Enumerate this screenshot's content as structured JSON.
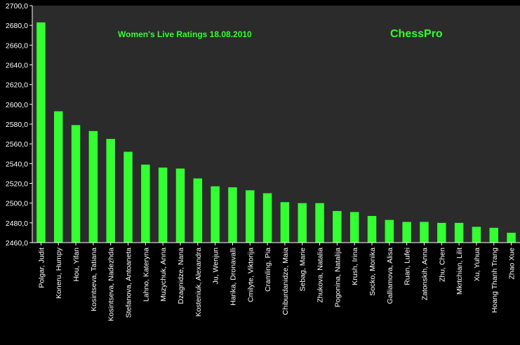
{
  "chart_data": {
    "type": "bar",
    "title": "Women's Live Ratings 18.08.2010",
    "watermark": "ChessPro",
    "xlabel": "",
    "ylabel": "",
    "ylim": [
      2460,
      2700
    ],
    "ytick_step": 20,
    "yticks": [
      "2460,0",
      "2480,0",
      "2500,0",
      "2520,0",
      "2540,0",
      "2560,0",
      "2580,0",
      "2600,0",
      "2620,0",
      "2640,0",
      "2660,0",
      "2680,0",
      "2700,0"
    ],
    "grid": false,
    "legend": "none",
    "bar_color": "#33ff33",
    "background_color": "#000000",
    "plot_background_color": "#2b2b2b",
    "text_color": "#ffffff",
    "categories": [
      "Polgar, Judit",
      "Koneru, Humpy",
      "Hou, Yifan",
      "Kosintseva, Tatiana",
      "Kosintseva, Nadezhda",
      "Stefanova, Antoaneta",
      "Lahno, Kateryna",
      "Muzychuk, Anna",
      "Dzagnidze, Nana",
      "Kosteniuk, Alexandra",
      "Ju, Wenjun",
      "Harika, Dronavalli",
      "Cmilyte, Viktorija",
      "Cramling, Pia",
      "Chiburdanidze, Maia",
      "Sebag, Marie",
      "Zhukova, Natalia",
      "Pogonina, Natalija",
      "Krush, Irina",
      "Socko, Monika",
      "Galliamova, Alisa",
      "Ruan, Lufei",
      "Zatonskih, Anna",
      "Zhu, Chen",
      "Mkrtchian, Lilit",
      "Xu, Yuhua",
      "Hoang Thanh Trang",
      "Zhao Xue"
    ],
    "values": [
      2683,
      2593,
      2579,
      2573,
      2565,
      2552,
      2539,
      2536,
      2535,
      2525,
      2517,
      2516,
      2513,
      2510,
      2501,
      2500,
      2500,
      2492,
      2491,
      2487,
      2483,
      2481,
      2481,
      2480,
      2480,
      2476,
      2475,
      2470
    ]
  }
}
